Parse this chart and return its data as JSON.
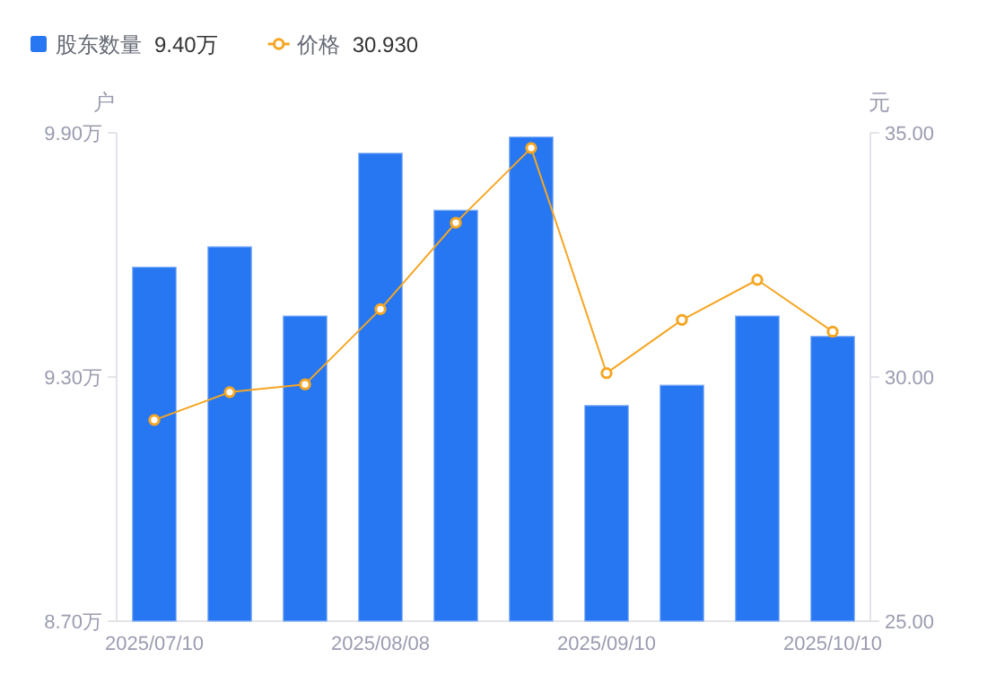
{
  "chart_data": {
    "type": "bar",
    "legend": "top left",
    "categories": [
      "2025/07/10",
      null,
      null,
      "2025/08/08",
      null,
      null,
      "2025/09/10",
      null,
      null,
      "2025/10/10"
    ],
    "ylabel": "户",
    "y2label": "元",
    "ylim": [
      8.7,
      9.9
    ],
    "yticks": [
      {
        "value": 8.7,
        "label": "8.70万"
      },
      {
        "value": 9.3,
        "label": "9.30万"
      },
      {
        "value": 9.9,
        "label": "9.90万"
      }
    ],
    "y2lim": [
      25,
      35
    ],
    "y2ticks": [
      {
        "value": 25,
        "label": "25.00"
      },
      {
        "value": 30,
        "label": "30.00"
      },
      {
        "value": 35,
        "label": "35.00"
      }
    ],
    "series": [
      {
        "name": "股东数量",
        "color": "#2777f2",
        "values": [
          9.57,
          9.62,
          9.45,
          9.85,
          9.71,
          9.89,
          9.23,
          9.28,
          9.45,
          9.4
        ]
      },
      {
        "name": "价格",
        "type": "line",
        "axis": "y2",
        "color": "#f5a623",
        "marker": "circle",
        "line_style": "solid",
        "values": [
          29.12,
          29.69,
          29.85,
          31.39,
          33.16,
          34.69,
          30.08,
          31.17,
          31.99,
          30.93
        ]
      }
    ],
    "annotations": [
      "9.40万",
      "30.930"
    ]
  }
}
